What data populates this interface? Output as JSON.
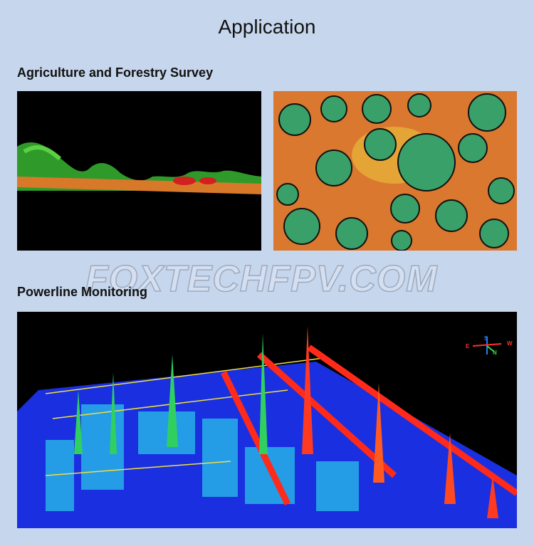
{
  "header": {
    "title": "Application"
  },
  "sections": [
    {
      "heading": "Agriculture and Forestry Survey"
    },
    {
      "heading": "Powerline Monitoring",
      "compass": [
        "S",
        "E",
        "N",
        "W"
      ]
    }
  ],
  "watermark": "FOXTECHFPV.COM"
}
